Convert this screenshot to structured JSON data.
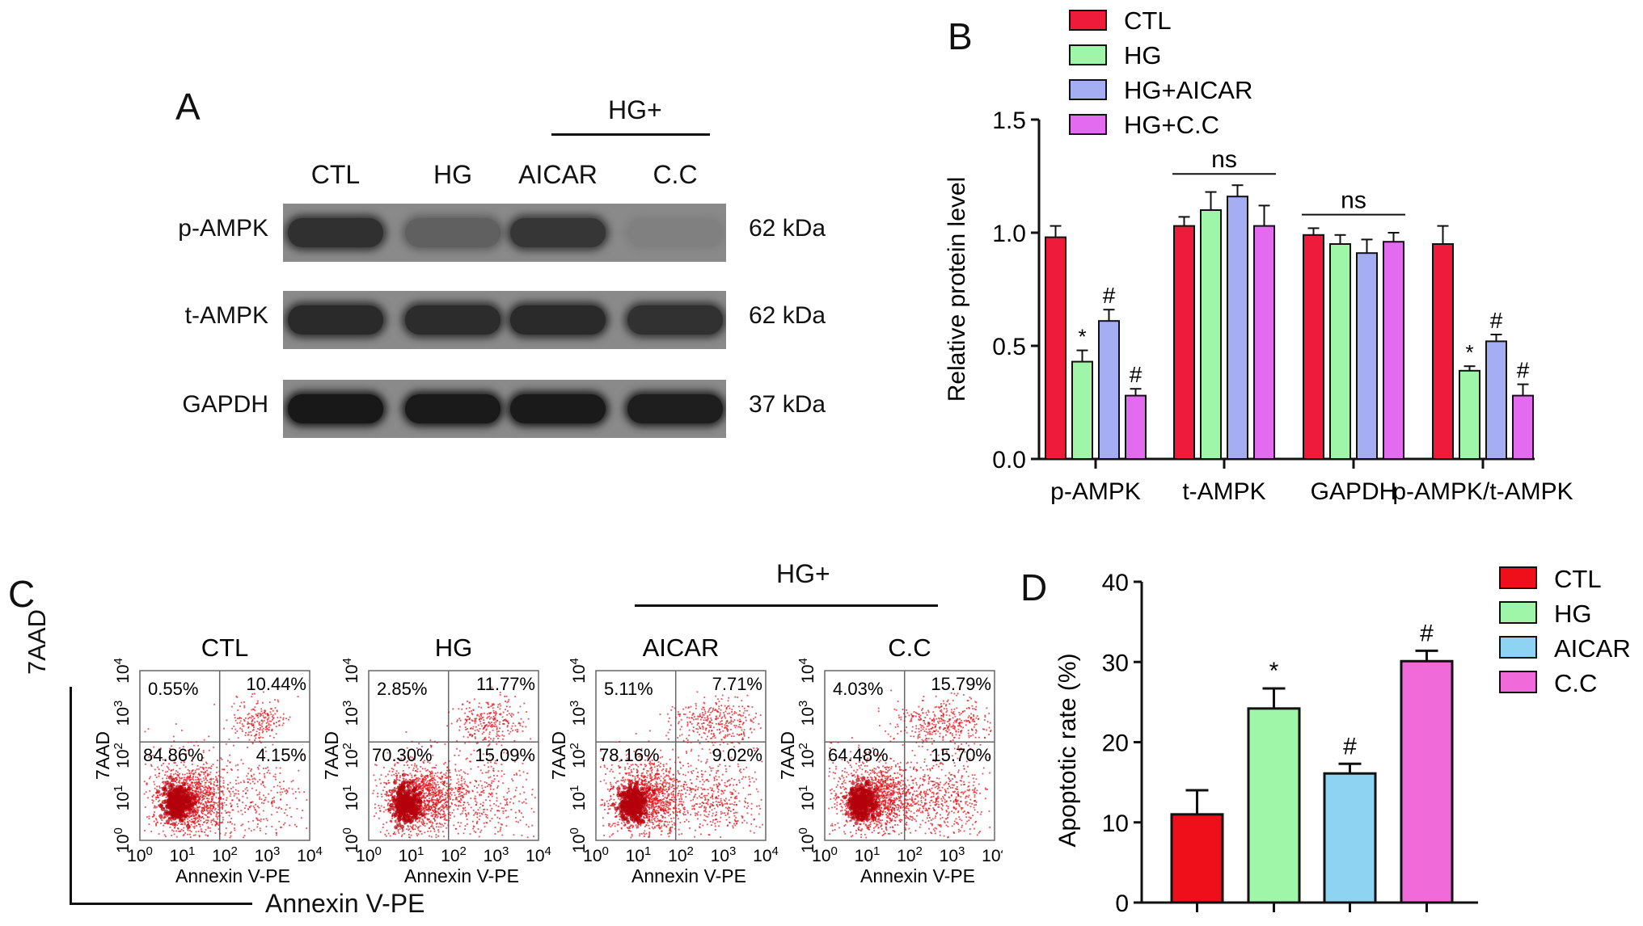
{
  "panel_a": {
    "letter": "A",
    "group_label": "HG+",
    "columns": [
      "CTL",
      "HG",
      "AICAR",
      "C.C"
    ],
    "rows": [
      {
        "label": "p-AMPK",
        "size": "62 kDa",
        "intensity": [
          0.75,
          0.35,
          0.7,
          0.08
        ]
      },
      {
        "label": "t-AMPK",
        "size": "62 kDa",
        "intensity": [
          0.8,
          0.78,
          0.8,
          0.74
        ]
      },
      {
        "label": "GAPDH",
        "size": "37 kDa",
        "intensity": [
          0.95,
          0.93,
          0.93,
          0.9
        ]
      }
    ]
  },
  "panel_b": {
    "letter": "B",
    "ns_label": "ns",
    "chart_data": {
      "type": "bar",
      "ylabel": "Relative protein level",
      "ylim": [
        0,
        1.5
      ],
      "yticks": [
        "0.0",
        "0.5",
        "1.0",
        "1.5"
      ],
      "categories": [
        "p-AMPK",
        "t-AMPK",
        "GAPDH",
        "p-AMPK/t-AMPK"
      ],
      "legend_position": "top-right",
      "series": [
        {
          "name": "CTL",
          "color": "#ee1c3a",
          "values": [
            0.98,
            1.03,
            0.99,
            0.95
          ],
          "errors": [
            0.05,
            0.04,
            0.03,
            0.08
          ],
          "marks": [
            "",
            "",
            "",
            ""
          ]
        },
        {
          "name": "HG",
          "color": "#9ff5a8",
          "values": [
            0.43,
            1.1,
            0.95,
            0.39
          ],
          "errors": [
            0.05,
            0.08,
            0.04,
            0.02
          ],
          "marks": [
            "*",
            "",
            "",
            "*"
          ]
        },
        {
          "name": "HG+AICAR",
          "color": "#a6aef3",
          "values": [
            0.61,
            1.16,
            0.91,
            0.52
          ],
          "errors": [
            0.05,
            0.05,
            0.06,
            0.03
          ],
          "marks": [
            "#",
            "",
            "",
            "#"
          ]
        },
        {
          "name": "HG+C.C",
          "color": "#e36bf0",
          "values": [
            0.28,
            1.03,
            0.96,
            0.28
          ],
          "errors": [
            0.03,
            0.09,
            0.04,
            0.05
          ],
          "marks": [
            "#",
            "",
            "",
            "#"
          ]
        }
      ]
    }
  },
  "panel_c": {
    "letter": "C",
    "group_label": "HG+",
    "y_axis_label": "7AAD",
    "x_axis_label": "Annexin V-PE",
    "plot_xlabel": "Annexin V-PE",
    "plot_ylabel": "7AAD",
    "tick_labels": [
      "10",
      "10",
      "10",
      "10",
      "10"
    ],
    "tick_exponents": [
      "0",
      "1",
      "2",
      "3",
      "4"
    ],
    "plots": [
      {
        "title": "CTL",
        "q_ul": "0.55%",
        "q_ur": "10.44%",
        "q_ll": "84.86%",
        "q_lr": "4.15%"
      },
      {
        "title": "HG",
        "q_ul": "2.85%",
        "q_ur": "11.77%",
        "q_ll": "70.30%",
        "q_lr": "15.09%"
      },
      {
        "title": "AICAR",
        "q_ul": "5.11%",
        "q_ur": "7.71%",
        "q_ll": "78.16%",
        "q_lr": "9.02%"
      },
      {
        "title": "C.C",
        "q_ul": "4.03%",
        "q_ur": "15.79%",
        "q_ll": "64.48%",
        "q_lr": "15.70%"
      }
    ]
  },
  "panel_d": {
    "letter": "D",
    "chart_data": {
      "type": "bar",
      "ylabel": "Apoptotic rate (%)",
      "ylim": [
        0,
        40
      ],
      "yticks": [
        "0",
        "10",
        "20",
        "30",
        "40"
      ],
      "legend_position": "top-right",
      "series": [
        {
          "name": "CTL",
          "color": "#ee0f1a",
          "value": 11.0,
          "error": 3.0,
          "mark": ""
        },
        {
          "name": "HG",
          "color": "#9ff5a8",
          "value": 24.2,
          "error": 2.5,
          "mark": "*"
        },
        {
          "name": "AICAR",
          "color": "#8fd3f2",
          "value": 16.1,
          "error": 1.2,
          "mark": "#"
        },
        {
          "name": "C.C",
          "color": "#f06ad9",
          "value": 30.1,
          "error": 1.3,
          "mark": "#"
        }
      ]
    }
  }
}
